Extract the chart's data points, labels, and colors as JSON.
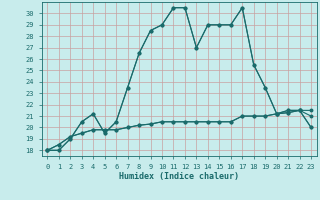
{
  "xlabel": "Humidex (Indice chaleur)",
  "bg_color": "#c8ecec",
  "grid_color": "#b0d4d4",
  "line_color": "#1a6b6b",
  "ylim": [
    17.5,
    31.0
  ],
  "xlim": [
    -0.5,
    23.5
  ],
  "yticks": [
    18,
    19,
    20,
    21,
    22,
    23,
    24,
    25,
    26,
    27,
    28,
    29,
    30
  ],
  "xticks": [
    0,
    1,
    2,
    3,
    4,
    5,
    6,
    7,
    8,
    9,
    10,
    11,
    12,
    13,
    14,
    15,
    16,
    17,
    18,
    19,
    20,
    21,
    22,
    23
  ],
  "series1": [
    18,
    18,
    19,
    20.5,
    21.2,
    19.5,
    20.5,
    23.5,
    26.5,
    28.5,
    29.0,
    30.5,
    30.5,
    27.0,
    29.0,
    29.0,
    29.0,
    30.5,
    25.5,
    23.5,
    21.2,
    21.5,
    21.5,
    21.0
  ],
  "series2": [
    18,
    18,
    19,
    20.5,
    21.2,
    19.5,
    20.5,
    23.5,
    26.5,
    28.5,
    29.0,
    30.5,
    30.5,
    27.0,
    29.0,
    29.0,
    29.0,
    30.5,
    25.5,
    23.5,
    21.2,
    21.5,
    21.5,
    20.0
  ],
  "series3": [
    18,
    18.5,
    19.2,
    19.5,
    19.8,
    19.8,
    19.8,
    20.0,
    20.2,
    20.3,
    20.5,
    20.5,
    20.5,
    20.5,
    20.5,
    20.5,
    20.5,
    21.0,
    21.0,
    21.0,
    21.2,
    21.3,
    21.5,
    21.5
  ],
  "series4": [
    18,
    18.5,
    19.2,
    19.5,
    19.8,
    19.8,
    19.8,
    20.0,
    20.2,
    20.3,
    20.5,
    20.5,
    20.5,
    20.5,
    20.5,
    20.5,
    20.5,
    21.0,
    21.0,
    21.0,
    21.2,
    21.3,
    21.5,
    20.0
  ]
}
